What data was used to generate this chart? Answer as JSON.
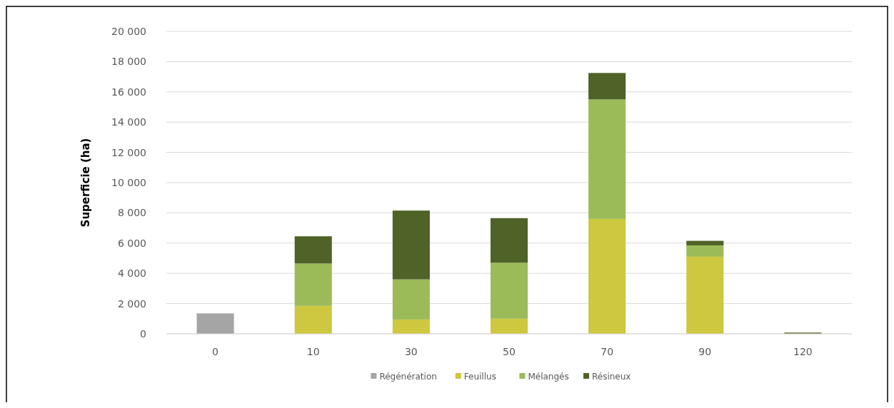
{
  "chart_data": {
    "type": "bar",
    "stacked": true,
    "ylabel": "Superficie (ha)",
    "categories": [
      "0",
      "10",
      "30",
      "50",
      "70",
      "90",
      "120"
    ],
    "series": [
      {
        "name": "Régénération",
        "color": "#a5a5a5",
        "values": [
          1350,
          0,
          0,
          0,
          0,
          0,
          0
        ]
      },
      {
        "name": "Feuillus",
        "color": "#cdc83f",
        "values": [
          0,
          1850,
          950,
          1000,
          7600,
          5100,
          0
        ]
      },
      {
        "name": "Mélangés",
        "color": "#9bbb59",
        "values": [
          0,
          2800,
          2650,
          3700,
          7900,
          750,
          0
        ]
      },
      {
        "name": "Résineux",
        "color": "#4f6228",
        "values": [
          0,
          1800,
          4550,
          2950,
          1750,
          300,
          80
        ]
      }
    ],
    "ylim": [
      0,
      20000
    ],
    "yticks": [
      {
        "value": 0,
        "label": "0"
      },
      {
        "value": 2000,
        "label": "2 000"
      },
      {
        "value": 4000,
        "label": "4 000"
      },
      {
        "value": 6000,
        "label": "6 000"
      },
      {
        "value": 8000,
        "label": "8 000"
      },
      {
        "value": 10000,
        "label": "10 000"
      },
      {
        "value": 12000,
        "label": "12 000"
      },
      {
        "value": 14000,
        "label": "14 000"
      },
      {
        "value": 16000,
        "label": "16 000"
      },
      {
        "value": 18000,
        "label": "18 000"
      },
      {
        "value": 20000,
        "label": "20 000"
      }
    ],
    "grid": "y",
    "legend": "bottom"
  }
}
